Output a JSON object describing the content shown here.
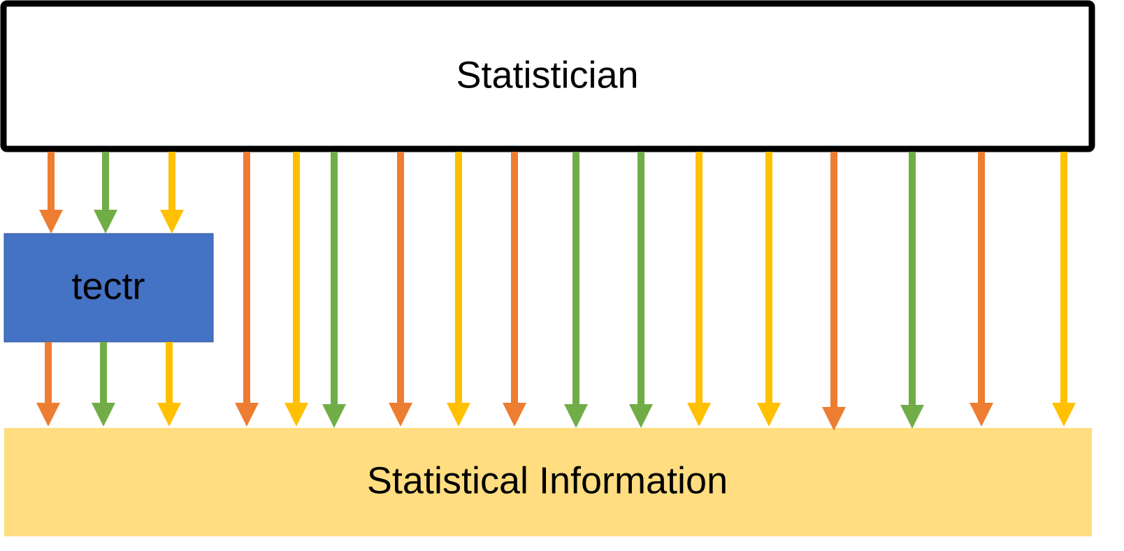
{
  "nodes": {
    "statistician": {
      "label": "Statistician",
      "fill": "#FFFFFF",
      "border": "#000000"
    },
    "tectr": {
      "label": "tectr",
      "fill": "#4472C4"
    },
    "statistical_information": {
      "label": "Statistical Information",
      "fill": "#FFDD80"
    }
  },
  "colors": {
    "orange": "#ED7D31",
    "green": "#70AD47",
    "yellow": "#FFC000"
  },
  "arrows": {
    "into_tectr": [
      "orange",
      "green",
      "yellow"
    ],
    "out_of_tectr": [
      "orange",
      "green",
      "yellow"
    ],
    "direct_to_information": [
      "orange",
      "yellow",
      "green",
      "orange",
      "yellow",
      "orange",
      "green",
      "green",
      "yellow",
      "yellow",
      "orange",
      "green",
      "orange",
      "yellow"
    ]
  }
}
